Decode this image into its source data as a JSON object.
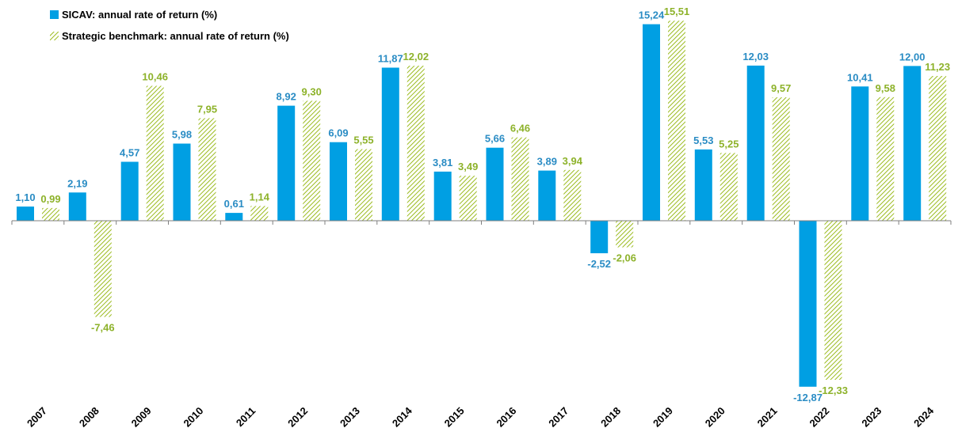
{
  "chart_data": {
    "type": "bar",
    "categories": [
      "2007",
      "2008",
      "2009",
      "2010",
      "2011",
      "2012",
      "2013",
      "2014",
      "2015",
      "2016",
      "2017",
      "2018",
      "2019",
      "2020",
      "2021",
      "2022",
      "2023",
      "2024"
    ],
    "series": [
      {
        "name": "SICAV: annual rate of return (%)",
        "color": "#009fe3",
        "pattern": "solid",
        "values": [
          1.1,
          2.19,
          4.57,
          5.98,
          0.61,
          8.92,
          6.09,
          11.87,
          3.81,
          5.66,
          3.89,
          -2.52,
          15.24,
          5.53,
          12.03,
          -12.87,
          10.41,
          12.0
        ],
        "labels": [
          "1,10",
          "2,19",
          "4,57",
          "5,98",
          "0,61",
          "8,92",
          "6,09",
          "11,87",
          "3,81",
          "5,66",
          "3,89",
          "-2,52",
          "15,24",
          "5,53",
          "12,03",
          "-12,87",
          "10,41",
          "12,00"
        ]
      },
      {
        "name": "Strategic benchmark: annual rate of return (%)",
        "color": "#9bbb1e",
        "pattern": "diagonal-hatch",
        "values": [
          0.99,
          -7.46,
          10.46,
          7.95,
          1.14,
          9.3,
          5.55,
          12.02,
          3.49,
          6.46,
          3.94,
          -2.06,
          15.51,
          5.25,
          9.57,
          -12.33,
          9.58,
          11.23
        ],
        "labels": [
          "0,99",
          "-7,46",
          "10,46",
          "7,95",
          "1,14",
          "9,30",
          "5,55",
          "12,02",
          "3,49",
          "6,46",
          "3,94",
          "-2,06",
          "15,51",
          "5,25",
          "9,57",
          "-12,33",
          "9,58",
          "11,23"
        ]
      }
    ],
    "ylim": [
      -12.87,
      15.51
    ],
    "grid": false,
    "legend_position": "top-left"
  }
}
